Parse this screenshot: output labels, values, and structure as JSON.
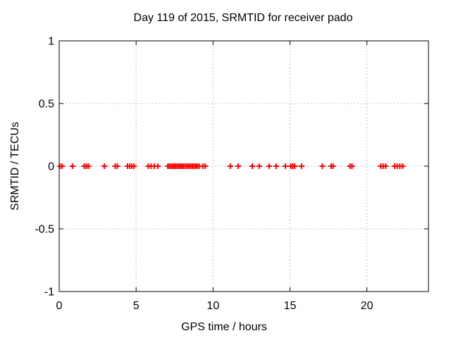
{
  "chart_data": {
    "type": "scatter",
    "title": "Day 119 of 2015, SRMTID for receiver pado",
    "xlabel": "GPS time / hours",
    "ylabel": "SRMTID / TECUs",
    "xlim": [
      0,
      24
    ],
    "ylim": [
      -1,
      1
    ],
    "xticks": [
      0,
      5,
      10,
      15,
      20
    ],
    "xtick_labels": [
      "0",
      "5",
      "10",
      "15",
      "20"
    ],
    "yticks": [
      -1,
      -0.5,
      0,
      0.5,
      1
    ],
    "ytick_labels": [
      "-1",
      "-0.5",
      "0",
      "0.5",
      "1"
    ],
    "grid": true,
    "legend_position": "none",
    "marker": "plus",
    "marker_color": "#ff0000",
    "series": [
      {
        "name": "SRMTID",
        "x": [
          0.05,
          0.18,
          0.86,
          1.62,
          1.76,
          1.9,
          2.93,
          3.64,
          3.78,
          4.44,
          4.58,
          4.72,
          4.86,
          5.79,
          5.97,
          6.18,
          6.41,
          7.06,
          7.16,
          7.27,
          7.38,
          7.48,
          7.58,
          7.69,
          7.8,
          7.9,
          8.0,
          8.1,
          8.22,
          8.33,
          8.44,
          8.55,
          8.66,
          8.77,
          8.88,
          8.98,
          9.1,
          9.34,
          9.49,
          11.12,
          11.63,
          12.55,
          13.0,
          13.65,
          14.1,
          14.7,
          15.05,
          15.17,
          15.3,
          15.75,
          17.1,
          17.68,
          17.8,
          18.9,
          19.03,
          20.9,
          21.06,
          21.22,
          21.8,
          21.97,
          22.14,
          22.32
        ],
        "y_constant": 0
      }
    ]
  },
  "style": {
    "background": "#ffffff",
    "axis_color": "#000000",
    "grid_color": "#b0b0b0",
    "text_color": "#000000"
  }
}
